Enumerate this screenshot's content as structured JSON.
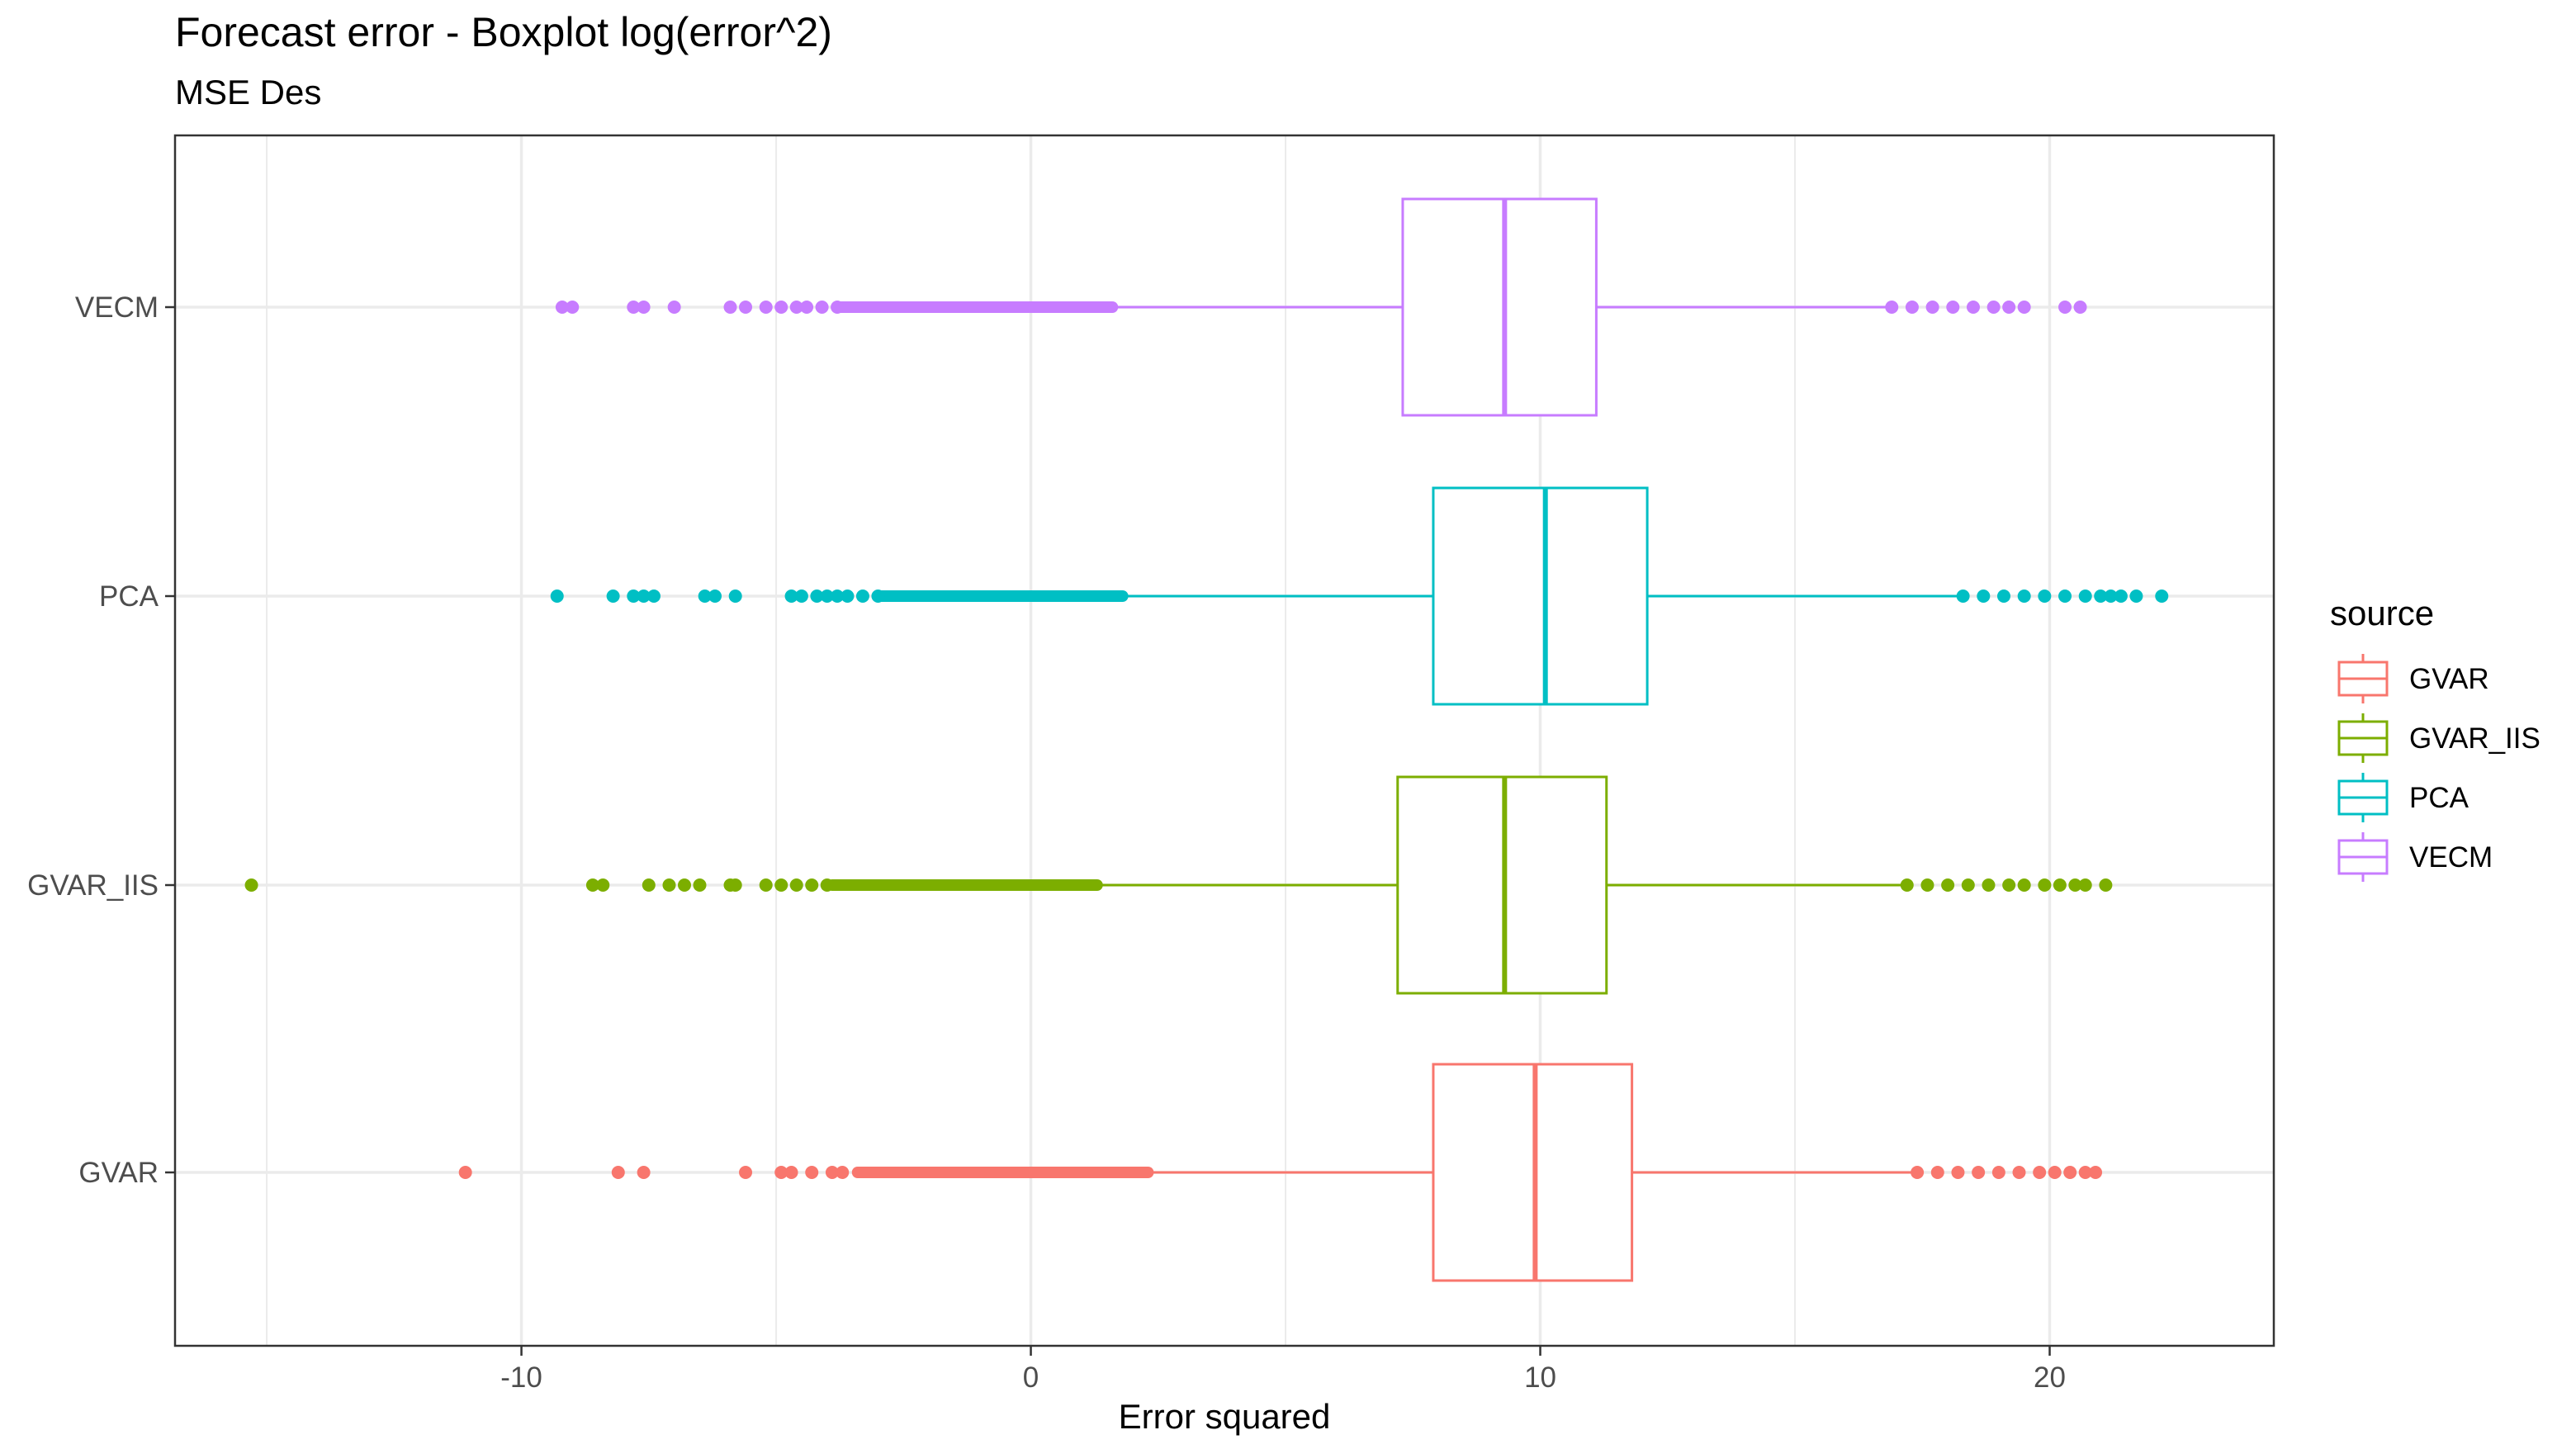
{
  "chart_data": {
    "type": "boxplot",
    "orientation": "horizontal",
    "title": "Forecast error - Boxplot log(error^2)",
    "subtitle": "MSE Des",
    "xlabel": "Error squared",
    "ylabel": "",
    "xlim": [
      -16.8,
      24.4
    ],
    "xticks": [
      -10,
      0,
      10,
      20
    ],
    "xtick_labels": [
      "-10",
      "0",
      "10",
      "20"
    ],
    "grid": true,
    "legend": {
      "title": "source",
      "position": "right",
      "entries": [
        "GVAR",
        "GVAR_IIS",
        "PCA",
        "VECM"
      ]
    },
    "categories": [
      "GVAR",
      "GVAR_IIS",
      "PCA",
      "VECM"
    ],
    "series": [
      {
        "name": "GVAR",
        "color": "#F8766D",
        "box": {
          "whisker_low": 2.3,
          "q1": 7.9,
          "median": 9.9,
          "q3": 11.8,
          "whisker_high": 17.4
        },
        "outliers_low": [
          -11.1,
          -8.1,
          -7.6,
          -5.6,
          -4.9,
          -4.7,
          -4.3,
          -3.9,
          -3.7
        ],
        "outlier_band_low": [
          -3.4,
          2.3
        ],
        "outliers_high": [
          17.4,
          17.8,
          18.2,
          18.6,
          19.0,
          19.4,
          19.8,
          20.1,
          20.4,
          20.7,
          20.9
        ]
      },
      {
        "name": "GVAR_IIS",
        "color": "#7CAE00",
        "box": {
          "whisker_low": 1.3,
          "q1": 7.2,
          "median": 9.3,
          "q3": 11.3,
          "whisker_high": 17.2
        },
        "outliers_low": [
          -15.3,
          -8.6,
          -8.4,
          -7.5,
          -7.1,
          -6.8,
          -6.5,
          -5.9,
          -5.8,
          -5.2,
          -4.9,
          -4.6,
          -4.3,
          -4.0
        ],
        "outlier_band_low": [
          -3.9,
          1.3
        ],
        "outliers_high": [
          17.2,
          17.6,
          18.0,
          18.4,
          18.8,
          19.2,
          19.5,
          19.9,
          20.2,
          20.5,
          20.7,
          21.1
        ]
      },
      {
        "name": "PCA",
        "color": "#00BFC4",
        "box": {
          "whisker_low": 1.8,
          "q1": 7.9,
          "median": 10.1,
          "q3": 12.1,
          "whisker_high": 18.2
        },
        "outliers_low": [
          -9.3,
          -8.2,
          -7.8,
          -7.6,
          -7.4,
          -6.4,
          -6.2,
          -5.8,
          -4.7,
          -4.5,
          -4.2,
          -4.0,
          -3.8,
          -3.6,
          -3.3,
          -3.0
        ],
        "outlier_band_low": [
          -3.0,
          1.8
        ],
        "outliers_high": [
          18.3,
          18.7,
          19.1,
          19.5,
          19.9,
          20.3,
          20.7,
          21.0,
          21.2,
          21.4,
          21.7,
          22.2
        ]
      },
      {
        "name": "VECM",
        "color": "#C77CFF",
        "box": {
          "whisker_low": 1.6,
          "q1": 7.3,
          "median": 9.3,
          "q3": 11.1,
          "whisker_high": 16.9
        },
        "outliers_low": [
          -9.2,
          -9.0,
          -7.8,
          -7.6,
          -7.0,
          -5.9,
          -5.6,
          -5.2,
          -4.9,
          -4.6,
          -4.4,
          -4.1,
          -3.8
        ],
        "outlier_band_low": [
          -3.8,
          1.6
        ],
        "outliers_high": [
          16.9,
          17.3,
          17.7,
          18.1,
          18.5,
          18.9,
          19.2,
          19.5,
          20.3,
          20.6
        ]
      }
    ]
  }
}
